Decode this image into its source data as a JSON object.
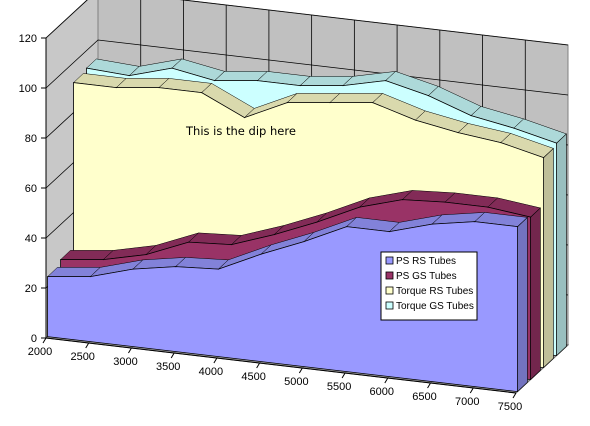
{
  "chart_data": {
    "type": "area",
    "style": "3d-area",
    "x": [
      2000,
      2500,
      3000,
      3500,
      4000,
      4500,
      5000,
      5500,
      6000,
      6500,
      7000,
      7500
    ],
    "xticks": [
      "2000",
      "2500",
      "3000",
      "3500",
      "4000",
      "4500",
      "5000",
      "5500",
      "6000",
      "6500",
      "7000",
      "7500"
    ],
    "yticks": [
      "0",
      "20",
      "40",
      "60",
      "80",
      "100",
      "120"
    ],
    "ylim": [
      0,
      120
    ],
    "grid": true,
    "legend_position": "inside-right",
    "annotation": "This is the dip here",
    "series": [
      {
        "name": "PS RS Tubes",
        "color": "#9999ff",
        "values": [
          24,
          26,
          31,
          34,
          35,
          43,
          50,
          58,
          58,
          63,
          66,
          66
        ]
      },
      {
        "name": "PS GS Tubes",
        "color": "#993366",
        "values": [
          26,
          28,
          32,
          39,
          40,
          46,
          53,
          61,
          66,
          67,
          67,
          65
        ]
      },
      {
        "name": "Torque RS Tubes",
        "color": "#ffffcc",
        "values": [
          92,
          92,
          94,
          94,
          86,
          94,
          96,
          98,
          93,
          90,
          88,
          84
        ]
      },
      {
        "name": "Torque GS Tubes",
        "color": "#ccffff",
        "values": [
          93,
          92,
          97,
          94,
          96,
          96,
          98,
          102,
          98,
          92,
          89,
          85
        ]
      }
    ]
  }
}
